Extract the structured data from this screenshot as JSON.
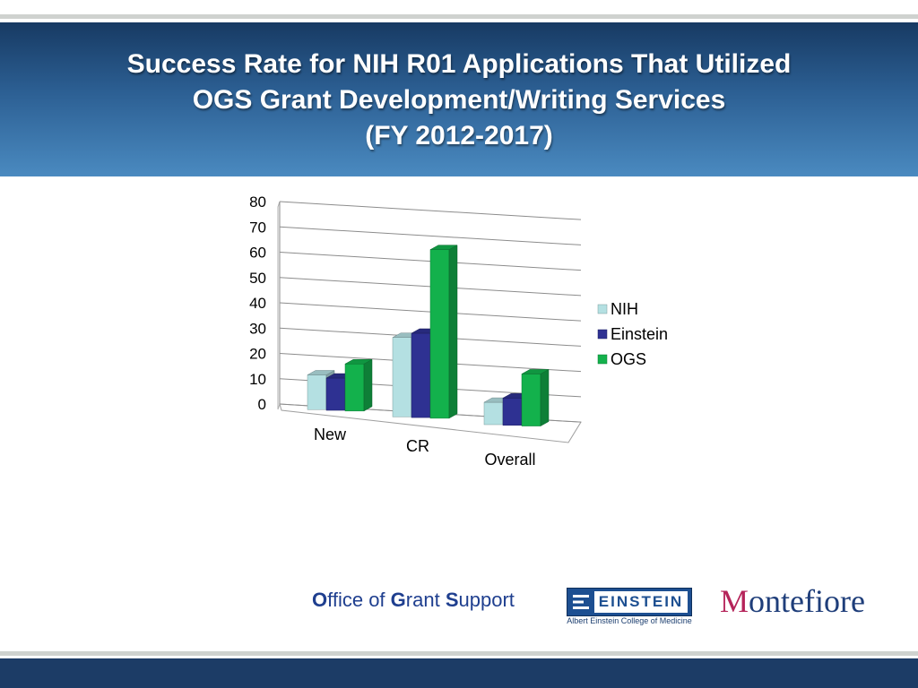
{
  "slide": {
    "title_lines": [
      "Success Rate for NIH R01 Applications That Utilized",
      "OGS Grant Development/Writing Services",
      "(FY 2012-2017)"
    ]
  },
  "footer": {
    "office_O": "O",
    "office_ffice": "ffice of ",
    "office_G": "G",
    "office_rant": "rant ",
    "office_S": "S",
    "office_upport": "upport",
    "einstein_logo_word": "EINSTEIN",
    "einstein_logo_subtitle": "Albert Einstein College of Medicine",
    "montefiore_M": "M",
    "montefiore_rest": "ontefiore"
  },
  "colors": {
    "header_top": "#173a63",
    "header_bottom": "#4a8ac0",
    "NIH": "#b4e0e2",
    "Einstein": "#2e3192",
    "OGS": "#13b14c",
    "footer_band": "#1c3c66"
  },
  "chart_data": {
    "type": "bar",
    "style": "3d-clustered-column",
    "categories": [
      "New",
      "CR",
      "Overall"
    ],
    "series": [
      {
        "name": "NIH",
        "values": [
          14,
          32,
          9
        ]
      },
      {
        "name": "Einstein",
        "values": [
          13,
          34,
          11
        ]
      },
      {
        "name": "OGS",
        "values": [
          19,
          68,
          21
        ]
      }
    ],
    "ylim": [
      0,
      80
    ],
    "yticks": [
      "0",
      "10",
      "20",
      "30",
      "40",
      "50",
      "60",
      "70",
      "80"
    ],
    "grid": true,
    "legend": "right",
    "title": "",
    "xlabel": "",
    "ylabel": ""
  }
}
